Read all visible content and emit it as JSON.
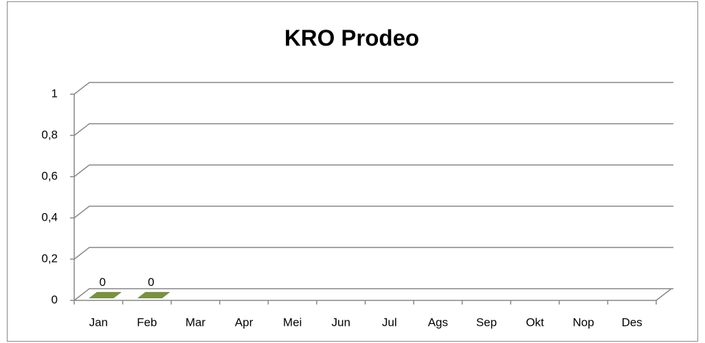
{
  "chart_data": {
    "type": "bar",
    "title": "KRO Prodeo",
    "categories": [
      "Jan",
      "Feb",
      "Mar",
      "Apr",
      "Mei",
      "Jun",
      "Jul",
      "Ags",
      "Sep",
      "Okt",
      "Nop",
      "Des"
    ],
    "values": [
      0,
      0,
      null,
      null,
      null,
      null,
      null,
      null,
      null,
      null,
      null,
      null
    ],
    "color": "#77933c",
    "ylim": [
      0,
      1
    ],
    "yticks": [
      0,
      {
        "value": 0.2,
        "label": "0,2"
      },
      {
        "value": 0.4,
        "label": "0,4"
      },
      {
        "value": 0.6,
        "label": "0,6"
      },
      {
        "value": 0.8,
        "label": "0,8"
      },
      1
    ],
    "grid": true
  }
}
